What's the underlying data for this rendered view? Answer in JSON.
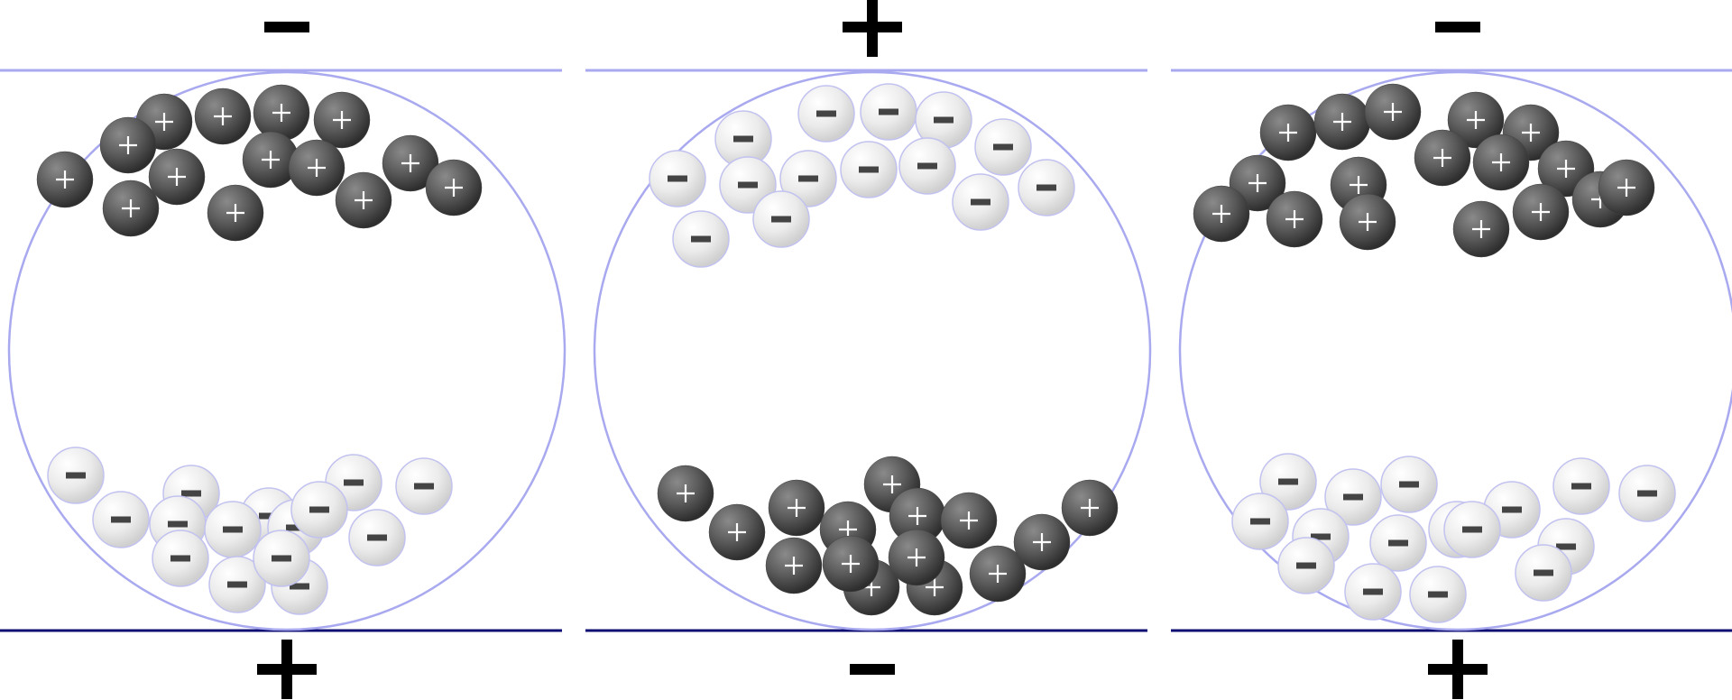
{
  "colors": {
    "background": "#ffffff",
    "top_plate": "#a9a9f0",
    "bottom_plate": "#0d0d73",
    "cell_outline": "#a9a9f0",
    "cation_fill": "#555555",
    "cation_sign": "#ffffff",
    "anion_fill": "#ececec",
    "anion_outline": "#c2c2f0",
    "anion_sign": "#444444",
    "label": "#000000"
  },
  "panels": [
    {
      "id": "panel-1",
      "top_polarity": "negative",
      "bottom_polarity": "positive",
      "top_ions": "cation",
      "bottom_ions": "anion"
    },
    {
      "id": "panel-2",
      "top_polarity": "positive",
      "bottom_polarity": "negative",
      "top_ions": "anion",
      "bottom_ions": "cation"
    },
    {
      "id": "panel-3",
      "top_polarity": "negative",
      "bottom_polarity": "positive",
      "top_ions": "cation",
      "bottom_ions": "anion"
    }
  ]
}
